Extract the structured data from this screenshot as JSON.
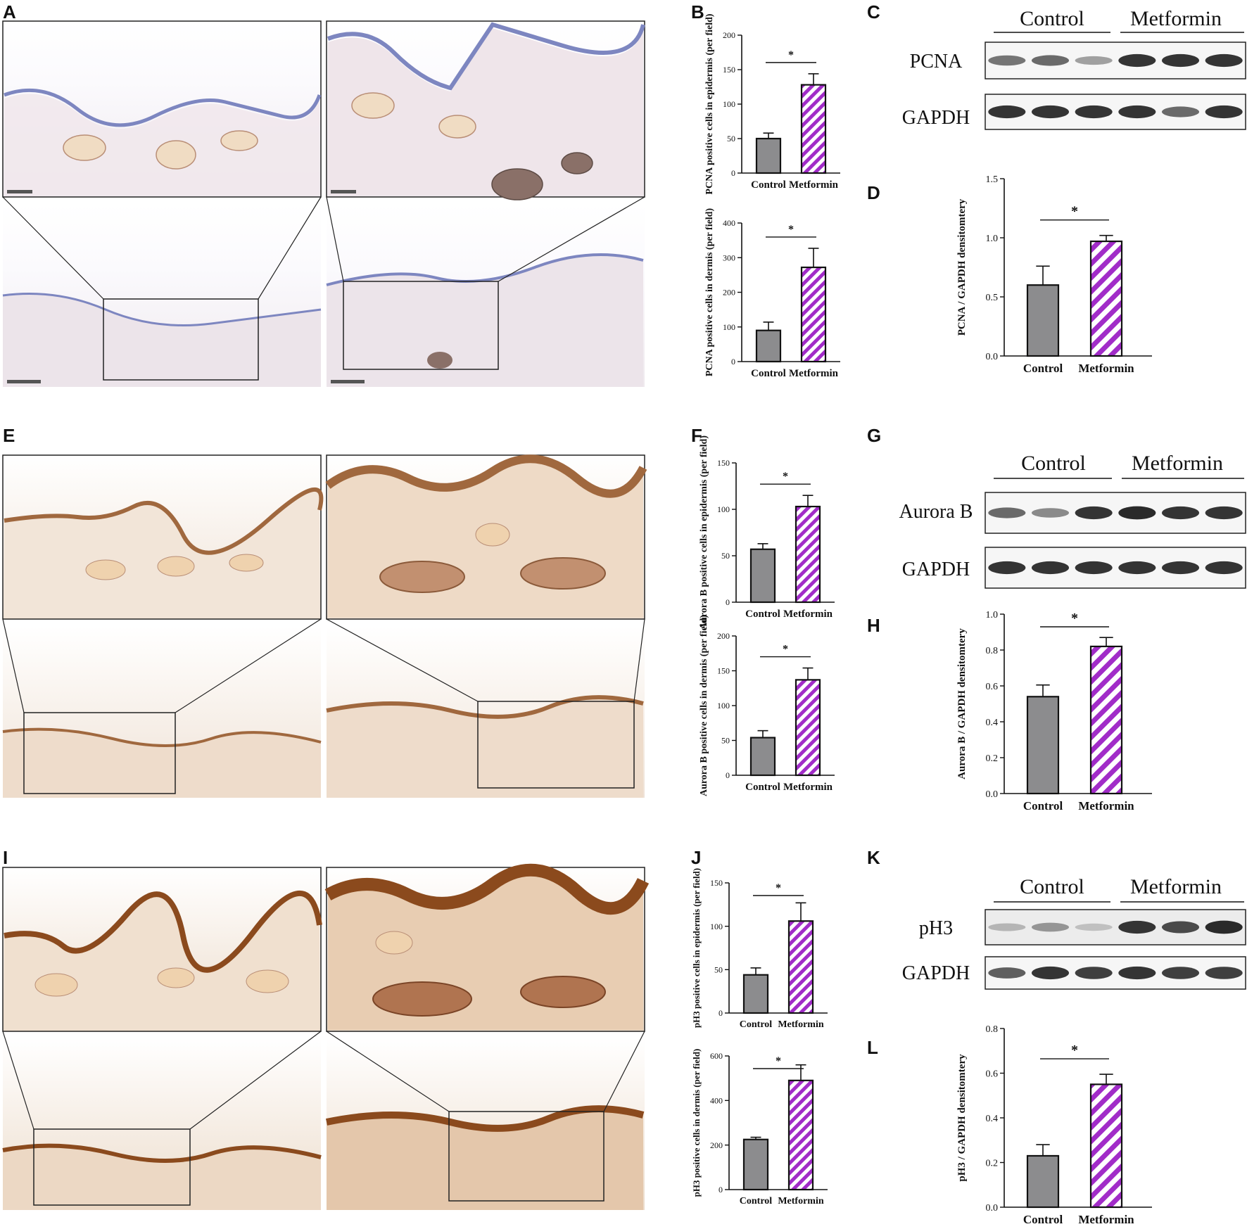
{
  "panel_letters": {
    "A": "A",
    "B": "B",
    "C": "C",
    "D": "D",
    "E": "E",
    "F": "F",
    "G": "G",
    "H": "H",
    "I": "I",
    "J": "J",
    "K": "K",
    "L": "L"
  },
  "colors": {
    "control_bar": "#8c8c8e",
    "metformin_stripe": "#a12cc8",
    "pcna_stain": "#7d86c0",
    "aurora_stain": "#a0683e",
    "ph3_stain": "#8b4a1d"
  },
  "westerns": [
    {
      "panel": "C",
      "group_left": "Control",
      "group_right": "Metformin",
      "target": "PCNA",
      "loading": "GAPDH",
      "target_intensity": [
        0.55,
        0.6,
        0.35,
        0.85,
        0.85,
        0.85
      ],
      "loading_intensity": [
        0.85,
        0.85,
        0.85,
        0.85,
        0.6,
        0.85
      ]
    },
    {
      "panel": "G",
      "group_left": "Control",
      "group_right": "Metformin",
      "target": "Aurora B",
      "loading": "GAPDH",
      "target_intensity": [
        0.6,
        0.45,
        0.85,
        0.9,
        0.85,
        0.85
      ],
      "loading_intensity": [
        0.85,
        0.85,
        0.85,
        0.85,
        0.85,
        0.85
      ]
    },
    {
      "panel": "K",
      "group_left": "Control",
      "group_right": "Metformin",
      "target": "pH3",
      "loading": "GAPDH",
      "target_intensity": [
        0.25,
        0.4,
        0.2,
        0.85,
        0.75,
        0.9
      ],
      "loading_intensity": [
        0.65,
        0.85,
        0.8,
        0.85,
        0.8,
        0.8
      ]
    }
  ],
  "chart_data": [
    {
      "panel": "B",
      "type": "bar",
      "categories": [
        "Control",
        "Metformin"
      ],
      "values": [
        50,
        128
      ],
      "errors": [
        8,
        16
      ],
      "ylabel": "PCNA positive cells in epidermis (per field)",
      "ylim": [
        0,
        200
      ],
      "yticks": [
        0,
        50,
        100,
        150,
        200
      ],
      "significance": "*"
    },
    {
      "panel": "B",
      "type": "bar",
      "categories": [
        "Control",
        "Metformin"
      ],
      "values": [
        90,
        272
      ],
      "errors": [
        24,
        55
      ],
      "ylabel": "PCNA positive cells in dermis (per field)",
      "ylim": [
        0,
        400
      ],
      "yticks": [
        0,
        100,
        200,
        300,
        400
      ],
      "significance": "*"
    },
    {
      "panel": "D",
      "type": "bar",
      "categories": [
        "Control",
        "Metformin"
      ],
      "values": [
        0.6,
        0.97
      ],
      "errors": [
        0.16,
        0.05
      ],
      "ylabel": "PCNA / GAPDH densitomtery",
      "ylim": [
        0,
        1.5
      ],
      "yticks": [
        "0.0",
        "0.5",
        "1.0",
        "1.5"
      ],
      "significance": "*"
    },
    {
      "panel": "F",
      "type": "bar",
      "categories": [
        "Control",
        "Metformin"
      ],
      "values": [
        57,
        103
      ],
      "errors": [
        6,
        12
      ],
      "ylabel": "Aurora B positive cells in epidermis (per field)",
      "ylim": [
        0,
        150
      ],
      "yticks": [
        0,
        50,
        100,
        150
      ],
      "significance": "*"
    },
    {
      "panel": "F",
      "type": "bar",
      "categories": [
        "Control",
        "Metformin"
      ],
      "values": [
        54,
        137
      ],
      "errors": [
        10,
        17
      ],
      "ylabel": "Aurora B positive cells in dermis (per field)",
      "ylim": [
        0,
        200
      ],
      "yticks": [
        0,
        50,
        100,
        150,
        200
      ],
      "significance": "*"
    },
    {
      "panel": "H",
      "type": "bar",
      "categories": [
        "Control",
        "Metformin"
      ],
      "values": [
        0.54,
        0.82
      ],
      "errors": [
        0.065,
        0.05
      ],
      "ylabel": "Aurora B / GAPDH densitomtery",
      "ylim": [
        0,
        1.0
      ],
      "yticks": [
        "0.0",
        "0.2",
        "0.4",
        "0.6",
        "0.8",
        "1.0"
      ],
      "significance": "*"
    },
    {
      "panel": "J",
      "type": "bar",
      "categories": [
        "Control",
        "Metformin"
      ],
      "values": [
        44,
        106
      ],
      "errors": [
        8,
        21
      ],
      "ylabel": "pH3 positive cells in epidermis (per field)",
      "ylim": [
        0,
        150
      ],
      "yticks": [
        0,
        50,
        100,
        150
      ],
      "significance": "*"
    },
    {
      "panel": "J",
      "type": "bar",
      "categories": [
        "Control",
        "Metformin"
      ],
      "values": [
        225,
        490
      ],
      "errors": [
        10,
        70
      ],
      "ylabel": "pH3 positive cells in dermis (per field)",
      "ylim": [
        0,
        600
      ],
      "yticks": [
        0,
        200,
        400,
        600
      ],
      "significance": "*"
    },
    {
      "panel": "L",
      "type": "bar",
      "categories": [
        "Control",
        "Metformin"
      ],
      "values": [
        0.23,
        0.55
      ],
      "errors": [
        0.05,
        0.045
      ],
      "ylabel": "pH3 / GAPDH densitomtery",
      "ylim": [
        0,
        0.8
      ],
      "yticks": [
        "0.0",
        "0.2",
        "0.4",
        "0.6",
        "0.8"
      ],
      "significance": "*"
    }
  ]
}
